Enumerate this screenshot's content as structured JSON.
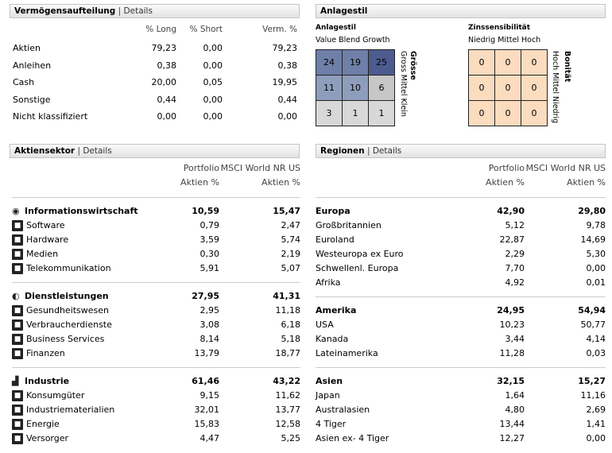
{
  "alloc": {
    "title": "Vermögensaufteilung",
    "link": "Details",
    "cols": [
      "% Long",
      "% Short",
      "Verm. %"
    ],
    "rows": [
      {
        "label": "Aktien",
        "v": [
          "79,23",
          "0,00",
          "79,23"
        ]
      },
      {
        "label": "Anleihen",
        "v": [
          "0,38",
          "0,00",
          "0,38"
        ]
      },
      {
        "label": "Cash",
        "v": [
          "20,00",
          "0,05",
          "19,95"
        ]
      },
      {
        "label": "Sonstige",
        "v": [
          "0,44",
          "0,00",
          "0,44"
        ]
      },
      {
        "label": "Nicht klassifiziert",
        "v": [
          "0,00",
          "0,00",
          "0,00"
        ]
      }
    ]
  },
  "style": {
    "title": "Anlagestil",
    "equity": {
      "title": "Anlagestil",
      "cols": "Value Blend Growth",
      "side_title": "Grösse",
      "side_labels": "Gross Mittel Klein",
      "cells": [
        "24",
        "19",
        "25",
        "11",
        "10",
        "6",
        "3",
        "1",
        "1"
      ],
      "colors": [
        "#6e7fa8",
        "#6e7fa8",
        "#4d5c8e",
        "#8f9dbd",
        "#8f9dbd",
        "#c7c7c7",
        "#d8d8d8",
        "#d8d8d8",
        "#d8d8d8"
      ]
    },
    "bond": {
      "title": "Zinssensibilität",
      "cols": "Niedrig Mittel Hoch",
      "side_title": "Bonität",
      "side_labels": "Hoch Mittel Niedrig",
      "cells": [
        "0",
        "0",
        "0",
        "0",
        "0",
        "0",
        "0",
        "0",
        "0"
      ],
      "color": "#fbdcbf"
    }
  },
  "sector": {
    "title": "Aktiensektor",
    "link": "Details",
    "col_a": "Portfolio",
    "col_b": "MSCI World NR US",
    "sub_a": "Aktien %",
    "sub_b": "Aktien %",
    "groups": [
      {
        "label": "Informationswirtschaft",
        "a": "10,59",
        "b": "15,47",
        "icon": "eye-icon",
        "items": [
          {
            "label": "Software",
            "a": "0,79",
            "b": "2,47",
            "icon": "software-icon"
          },
          {
            "label": "Hardware",
            "a": "3,59",
            "b": "5,74",
            "icon": "hardware-icon"
          },
          {
            "label": "Medien",
            "a": "0,30",
            "b": "2,19",
            "icon": "media-icon"
          },
          {
            "label": "Telekommunikation",
            "a": "5,91",
            "b": "5,07",
            "icon": "telecom-icon"
          }
        ]
      },
      {
        "label": "Dienstleistungen",
        "a": "27,95",
        "b": "41,31",
        "icon": "service-icon",
        "items": [
          {
            "label": "Gesundheitswesen",
            "a": "2,95",
            "b": "11,18",
            "icon": "health-icon"
          },
          {
            "label": "Verbraucherdienste",
            "a": "3,08",
            "b": "6,18",
            "icon": "consumer-services-icon"
          },
          {
            "label": "Business Services",
            "a": "8,14",
            "b": "5,18",
            "icon": "business-icon"
          },
          {
            "label": "Finanzen",
            "a": "13,79",
            "b": "18,77",
            "icon": "finance-icon"
          }
        ]
      },
      {
        "label": "Industrie",
        "a": "61,46",
        "b": "43,22",
        "icon": "industry-icon",
        "items": [
          {
            "label": "Konsumgüter",
            "a": "9,15",
            "b": "11,62",
            "icon": "consumer-goods-icon"
          },
          {
            "label": "Industriematerialien",
            "a": "32,01",
            "b": "13,77",
            "icon": "materials-icon"
          },
          {
            "label": "Energie",
            "a": "15,83",
            "b": "12,58",
            "icon": "energy-icon"
          },
          {
            "label": "Versorger",
            "a": "4,47",
            "b": "5,25",
            "icon": "utilities-icon"
          }
        ]
      }
    ]
  },
  "regions": {
    "title": "Regionen",
    "link": "Details",
    "col_a": "Portfolio",
    "col_b": "MSCI World NR US",
    "sub_a": "Aktien %",
    "sub_b": "Aktien %",
    "groups": [
      {
        "label": "Europa",
        "a": "42,90",
        "b": "29,80",
        "items": [
          {
            "label": "Großbritannien",
            "a": "5,12",
            "b": "9,78"
          },
          {
            "label": "Euroland",
            "a": "22,87",
            "b": "14,69"
          },
          {
            "label": "Westeuropa ex Euro",
            "a": "2,29",
            "b": "5,30"
          },
          {
            "label": "Schwellenl. Europa",
            "a": "7,70",
            "b": "0,00"
          },
          {
            "label": "Afrika",
            "a": "4,92",
            "b": "0,01"
          }
        ]
      },
      {
        "label": "Amerika",
        "a": "24,95",
        "b": "54,94",
        "items": [
          {
            "label": "USA",
            "a": "10,23",
            "b": "50,77"
          },
          {
            "label": "Kanada",
            "a": "3,44",
            "b": "4,14"
          },
          {
            "label": "Lateinamerika",
            "a": "11,28",
            "b": "0,03"
          }
        ]
      },
      {
        "label": "Asien",
        "a": "32,15",
        "b": "15,27",
        "items": [
          {
            "label": "Japan",
            "a": "1,64",
            "b": "11,16"
          },
          {
            "label": "Australasien",
            "a": "4,80",
            "b": "2,69"
          },
          {
            "label": "4 Tiger",
            "a": "13,44",
            "b": "1,41"
          },
          {
            "label": "Asien ex- 4 Tiger",
            "a": "12,27",
            "b": "0,00"
          }
        ]
      }
    ]
  }
}
